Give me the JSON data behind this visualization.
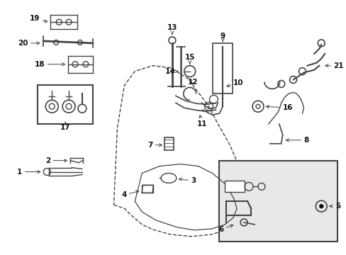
{
  "bg_color": "#ffffff",
  "line_color": "#444444",
  "label_color": "#111111",
  "fig_w": 4.89,
  "fig_h": 3.6,
  "dpi": 100
}
